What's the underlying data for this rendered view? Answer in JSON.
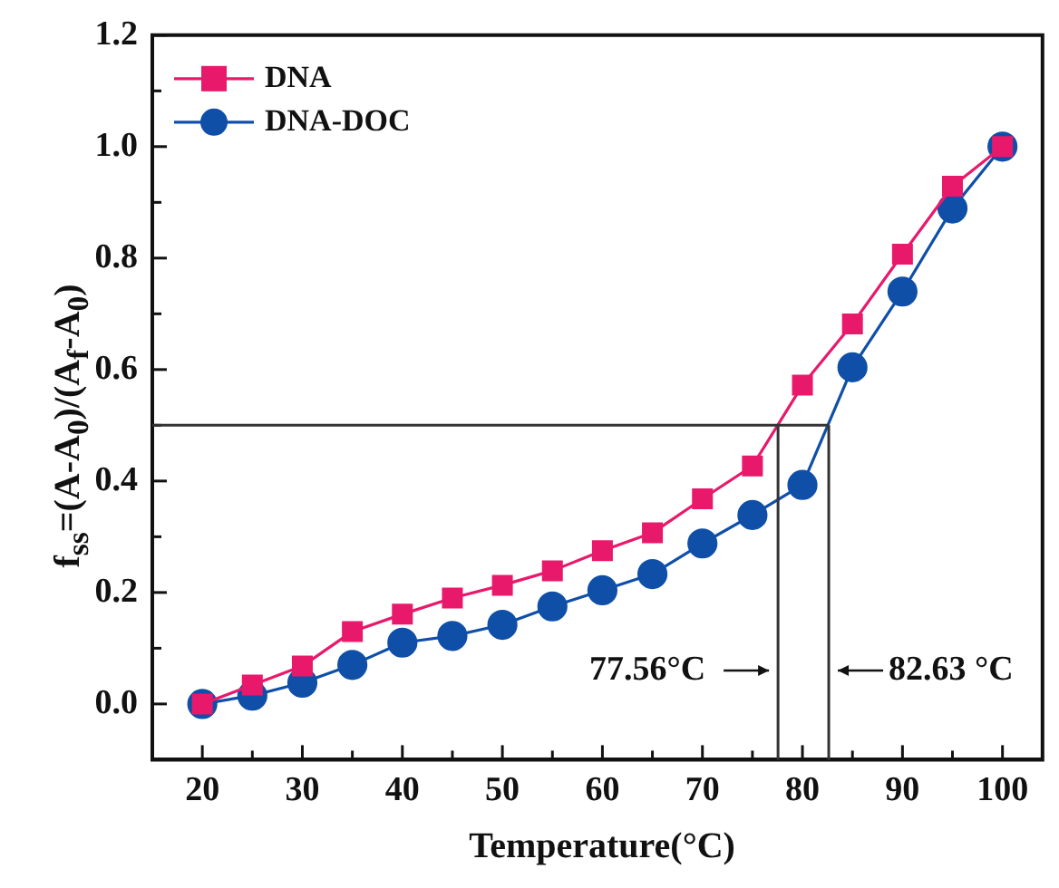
{
  "chart_data": {
    "type": "line",
    "xlabel": "Temperature(°C)",
    "ylabel": "f$_{ss}$=(A-A$_{0}$)/(A$_{f}$-A$_{0}$)",
    "x": [
      20,
      25,
      30,
      35,
      40,
      45,
      50,
      55,
      60,
      65,
      70,
      75,
      80,
      85,
      90,
      95,
      100
    ],
    "series": [
      {
        "name": "DNA",
        "color": "#e8196b",
        "marker": "square",
        "values": [
          0,
          0.034,
          0.068,
          0.13,
          0.161,
          0.19,
          0.213,
          0.239,
          0.275,
          0.307,
          0.368,
          0.427,
          0.572,
          0.682,
          0.807,
          0.929,
          1.0
        ]
      },
      {
        "name": "DNA-DOC",
        "color": "#0f4fa8",
        "marker": "circle",
        "values": [
          0,
          0.015,
          0.038,
          0.07,
          0.11,
          0.122,
          0.142,
          0.175,
          0.204,
          0.233,
          0.288,
          0.339,
          0.393,
          0.604,
          0.74,
          0.889,
          1.0
        ]
      }
    ],
    "xlim": [
      15,
      104
    ],
    "ylim": [
      -0.1,
      1.2
    ],
    "xticks": [
      20,
      {
        "value": 25,
        "label": null
      },
      30,
      {
        "value": 35,
        "label": null
      },
      40,
      {
        "value": 45,
        "label": null
      },
      50,
      {
        "value": 55,
        "label": null
      },
      60,
      {
        "value": 65,
        "label": null
      },
      70,
      {
        "value": 75,
        "label": null
      },
      80,
      {
        "value": 85,
        "label": null
      },
      90,
      {
        "value": 95,
        "label": null
      },
      100
    ],
    "yticks": [
      {
        "value": 0,
        "label": "0.0"
      },
      {
        "value": 0.1,
        "label": null
      },
      0.2,
      {
        "value": 0.3,
        "label": null
      },
      0.4,
      {
        "value": 0.5,
        "label": null
      },
      0.6,
      {
        "value": 0.7,
        "label": null
      },
      0.8,
      {
        "value": 0.9,
        "label": null
      },
      {
        "value": 1,
        "label": "1.0"
      },
      {
        "value": 1.1,
        "label": null
      },
      1.2
    ],
    "ref_lines": [
      {
        "axis": "y",
        "value": 0.5,
        "color": "#333333"
      },
      {
        "axis": "x",
        "value": 77.56,
        "label": "77.56°C",
        "color": "#333333"
      },
      {
        "axis": "x",
        "value": 82.63,
        "label": "82.63 °C",
        "color": "#333333"
      }
    ],
    "grid": false,
    "legend": "top left",
    "line_style": "solid"
  }
}
